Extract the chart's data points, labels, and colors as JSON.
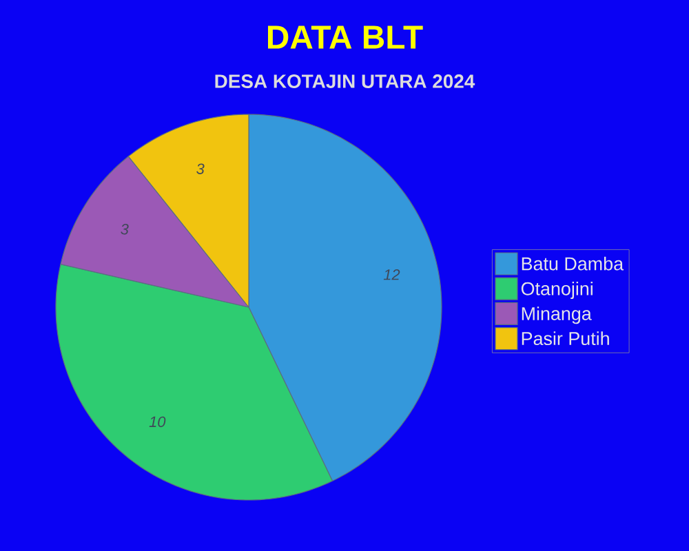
{
  "chart_data": {
    "type": "pie",
    "title": "DATA BLT",
    "subtitle": "DESA KOTAJIN UTARA 2024",
    "categories": [
      "Batu Damba",
      "Otanojini",
      "Minanga",
      "Pasir Putih"
    ],
    "values": [
      12,
      10,
      3,
      3
    ],
    "colors": [
      "#3498db",
      "#2ecc71",
      "#9b59b6",
      "#f1c40f"
    ],
    "data_labels": true,
    "legend": "right"
  }
}
